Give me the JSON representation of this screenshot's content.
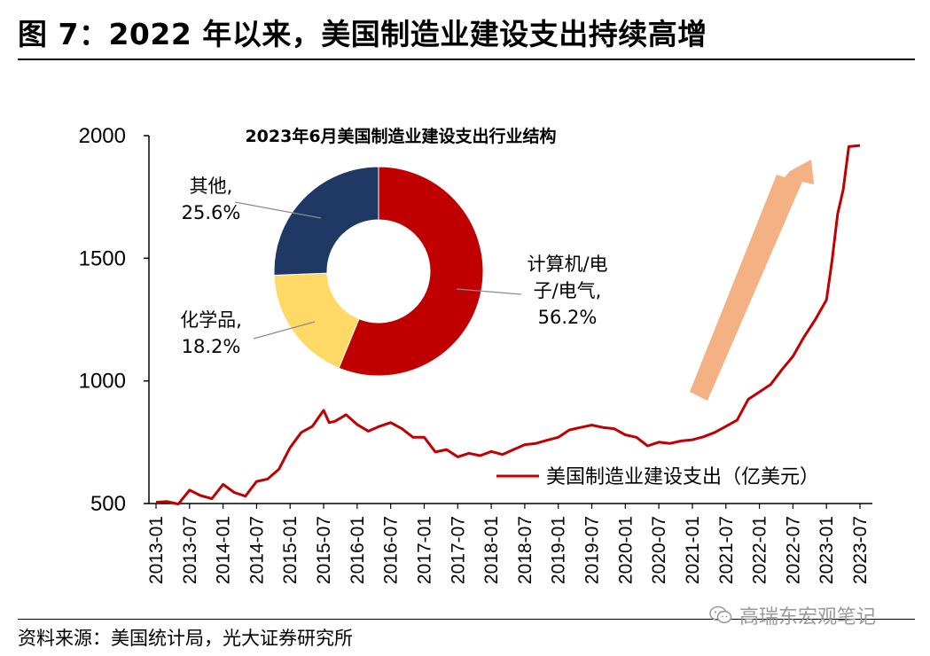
{
  "figure": {
    "title": "图 7：2022 年以来，美国制造业建设支出持续高增",
    "source": "资料来源：美国统计局，光大证券研究所",
    "watermark": "高瑞东宏观笔记",
    "watermark_icon": "wechat-icon"
  },
  "chart_data": [
    {
      "type": "line",
      "series": [
        {
          "name": "美国制造业建设支出（亿美元）",
          "color": "#c00000",
          "points": [
            [
              "2013-01",
              505
            ],
            [
              "2013-03",
              508
            ],
            [
              "2013-05",
              498
            ],
            [
              "2013-07",
              555
            ],
            [
              "2013-09",
              532
            ],
            [
              "2013-11",
              520
            ],
            [
              "2014-01",
              578
            ],
            [
              "2014-03",
              545
            ],
            [
              "2014-05",
              530
            ],
            [
              "2014-07",
              590
            ],
            [
              "2014-09",
              600
            ],
            [
              "2014-11",
              640
            ],
            [
              "2015-01",
              728
            ],
            [
              "2015-03",
              790
            ],
            [
              "2015-05",
              815
            ],
            [
              "2015-07",
              880
            ],
            [
              "2015-08",
              830
            ],
            [
              "2015-09",
              835
            ],
            [
              "2015-11",
              862
            ],
            [
              "2016-01",
              822
            ],
            [
              "2016-03",
              795
            ],
            [
              "2016-05",
              815
            ],
            [
              "2016-07",
              830
            ],
            [
              "2016-09",
              805
            ],
            [
              "2016-11",
              770
            ],
            [
              "2017-01",
              770
            ],
            [
              "2017-03",
              710
            ],
            [
              "2017-05",
              720
            ],
            [
              "2017-07",
              690
            ],
            [
              "2017-09",
              705
            ],
            [
              "2017-11",
              695
            ],
            [
              "2018-01",
              712
            ],
            [
              "2018-03",
              700
            ],
            [
              "2018-05",
              720
            ],
            [
              "2018-07",
              740
            ],
            [
              "2018-09",
              745
            ],
            [
              "2018-11",
              758
            ],
            [
              "2019-01",
              770
            ],
            [
              "2019-03",
              800
            ],
            [
              "2019-05",
              810
            ],
            [
              "2019-07",
              820
            ],
            [
              "2019-09",
              810
            ],
            [
              "2019-11",
              805
            ],
            [
              "2020-01",
              780
            ],
            [
              "2020-03",
              770
            ],
            [
              "2020-05",
              735
            ],
            [
              "2020-07",
              750
            ],
            [
              "2020-09",
              745
            ],
            [
              "2020-11",
              755
            ],
            [
              "2021-01",
              760
            ],
            [
              "2021-03",
              772
            ],
            [
              "2021-05",
              790
            ],
            [
              "2021-07",
              815
            ],
            [
              "2021-09",
              840
            ],
            [
              "2021-11",
              925
            ],
            [
              "2022-01",
              955
            ],
            [
              "2022-03",
              985
            ],
            [
              "2022-05",
              1045
            ],
            [
              "2022-07",
              1100
            ],
            [
              "2022-09",
              1180
            ],
            [
              "2022-11",
              1250
            ],
            [
              "2023-01",
              1330
            ],
            [
              "2023-02",
              1490
            ],
            [
              "2023-03",
              1680
            ],
            [
              "2023-04",
              1780
            ],
            [
              "2023-05",
              1955
            ],
            [
              "2023-07",
              1960
            ]
          ]
        }
      ],
      "x_ticks": [
        "2013-01",
        "2013-07",
        "2014-01",
        "2014-07",
        "2015-01",
        "2015-07",
        "2016-01",
        "2016-07",
        "2017-01",
        "2017-07",
        "2018-01",
        "2018-07",
        "2019-01",
        "2019-07",
        "2020-01",
        "2020-07",
        "2021-01",
        "2021-07",
        "2022-01",
        "2022-07",
        "2023-01",
        "2023-07"
      ],
      "y_ticks": [
        500,
        1000,
        1500,
        2000
      ],
      "ylim": [
        500,
        2000
      ],
      "legend": "bottom-right",
      "annotation": "upward arrow (light orange) indicating rising trend"
    },
    {
      "type": "pie",
      "style": "donut",
      "title": "2023年6月美国制造业建设支出行业结构",
      "slices": [
        {
          "label_lines": [
            "计算机/电",
            "子/电气,",
            "56.2%"
          ],
          "value": 56.2,
          "color": "#c00000"
        },
        {
          "label_lines": [
            "化学品,",
            "18.2%"
          ],
          "value": 18.2,
          "color": "#ffd966"
        },
        {
          "label_lines": [
            "其他,",
            "25.6%"
          ],
          "value": 25.6,
          "color": "#1f3864"
        }
      ]
    }
  ]
}
